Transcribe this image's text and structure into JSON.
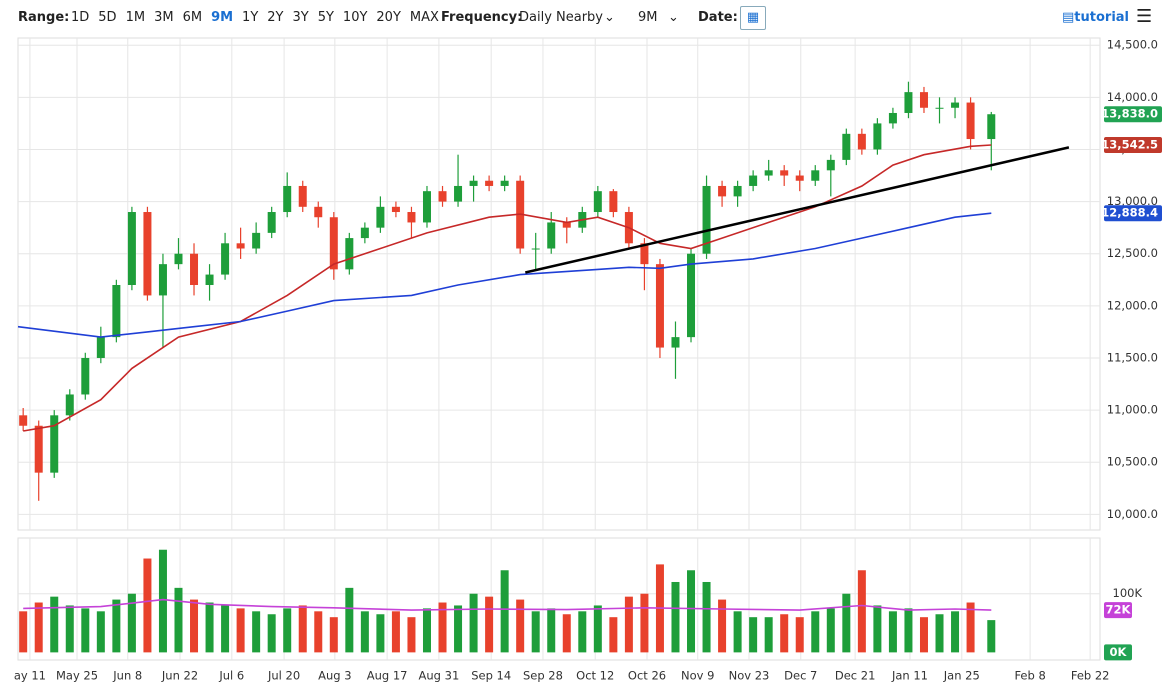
{
  "toolbar": {
    "range_label": "Range:",
    "ranges": [
      "1D",
      "5D",
      "1M",
      "3M",
      "6M",
      "9M",
      "1Y",
      "2Y",
      "3Y",
      "5Y",
      "10Y",
      "20Y",
      "MAX"
    ],
    "active_range": "9M",
    "frequency_label": "Frequency:",
    "frequency": "Daily Nearby",
    "period": "9M",
    "date_label": "Date:",
    "tutorial": "tutorial"
  },
  "chart_data": [
    {
      "type": "candlestick",
      "up_color": "#1e9e3a",
      "down_color": "#e8412c",
      "xlim": [
        -1,
        208
      ],
      "ylim": [
        9850,
        14550
      ],
      "grid": true,
      "yticks": [
        {
          "value": 10000,
          "label": "10,000.0"
        },
        {
          "value": 10500,
          "label": "10,500.0"
        },
        {
          "value": 11000,
          "label": "11,000.0"
        },
        {
          "value": 11500,
          "label": "11,500.0"
        },
        {
          "value": 12000,
          "label": "12,000.0"
        },
        {
          "value": 12500,
          "label": "12,500.0"
        },
        {
          "value": 13000,
          "label": "13,000.0"
        },
        {
          "value": 13500,
          "label": "13,500.0"
        },
        {
          "value": 14000,
          "label": "14,000.0"
        },
        {
          "value": 14500,
          "label": "14,500.0"
        }
      ],
      "x": [
        0,
        3,
        6,
        9,
        12,
        15,
        18,
        21,
        24,
        27,
        30,
        33,
        36,
        39,
        42,
        45,
        48,
        51,
        54,
        57,
        60,
        63,
        66,
        69,
        72,
        75,
        78,
        81,
        84,
        87,
        90,
        93,
        96,
        99,
        102,
        105,
        108,
        111,
        114,
        117,
        120,
        123,
        126,
        129,
        132,
        135,
        138,
        141,
        144,
        147,
        150,
        153,
        156,
        159,
        162,
        165,
        168,
        171,
        174,
        177,
        180,
        183,
        187
      ],
      "open": [
        10950,
        10850,
        10400,
        10950,
        11150,
        11500,
        11700,
        12200,
        12900,
        12100,
        12400,
        12500,
        12200,
        12300,
        12600,
        12550,
        12700,
        12900,
        13150,
        12950,
        12850,
        12350,
        12650,
        12750,
        12950,
        12900,
        12800,
        13100,
        13000,
        13150,
        13200,
        13150,
        13200,
        12550,
        12550,
        12800,
        12750,
        12900,
        13100,
        12900,
        12600,
        12400,
        11600,
        11700,
        12500,
        13150,
        13050,
        13150,
        13250,
        13300,
        13250,
        13200,
        13300,
        13400,
        13650,
        13500,
        13750,
        13850,
        14050,
        13900,
        13900,
        13950,
        13600
      ],
      "high": [
        11020,
        10900,
        11000,
        11200,
        11550,
        11800,
        12250,
        12950,
        12950,
        12500,
        12650,
        12600,
        12400,
        12700,
        12750,
        12800,
        12950,
        13280,
        13200,
        13000,
        12900,
        12700,
        12800,
        13050,
        13000,
        12950,
        13150,
        13150,
        13450,
        13250,
        13250,
        13250,
        13250,
        12700,
        12900,
        12850,
        12950,
        13150,
        13120,
        12950,
        12650,
        12450,
        11850,
        12550,
        13250,
        13200,
        13200,
        13300,
        13400,
        13350,
        13300,
        13350,
        13450,
        13700,
        13700,
        13800,
        13900,
        14150,
        14100,
        14000,
        14000,
        14000,
        13860
      ],
      "low": [
        10800,
        10130,
        10350,
        10900,
        11100,
        11450,
        11650,
        12150,
        12050,
        11600,
        12350,
        12100,
        12050,
        12250,
        12450,
        12500,
        12650,
        12850,
        12900,
        12750,
        12250,
        12300,
        12600,
        12700,
        12850,
        12650,
        12750,
        12950,
        12950,
        13000,
        13100,
        13100,
        12500,
        12350,
        12500,
        12600,
        12700,
        12850,
        12850,
        12550,
        12150,
        11500,
        11300,
        11650,
        12450,
        12950,
        12950,
        13100,
        13200,
        13150,
        13100,
        13150,
        13050,
        13350,
        13450,
        13450,
        13700,
        13800,
        13850,
        13750,
        13800,
        13500,
        13300
      ],
      "close": [
        10850,
        10400,
        10950,
        11150,
        11500,
        11700,
        12200,
        12900,
        12100,
        12400,
        12500,
        12200,
        12300,
        12600,
        12550,
        12700,
        12900,
        13150,
        12950,
        12850,
        12350,
        12650,
        12750,
        12950,
        12900,
        12800,
        13100,
        13000,
        13150,
        13200,
        13150,
        13200,
        12550,
        12550,
        12800,
        12750,
        12900,
        13100,
        12900,
        12600,
        12400,
        11600,
        11700,
        12500,
        13150,
        13050,
        13150,
        13250,
        13300,
        13250,
        13200,
        13300,
        13400,
        13650,
        13500,
        13750,
        13850,
        14050,
        13900,
        13900,
        13950,
        13600,
        13838
      ],
      "series": [
        {
          "color": "#c62828",
          "x": [
            0,
            6,
            15,
            21,
            30,
            42,
            51,
            60,
            69,
            78,
            90,
            96,
            105,
            111,
            117,
            123,
            129,
            135,
            144,
            153,
            162,
            168,
            174,
            183,
            187
          ],
          "values": [
            10800,
            10850,
            11100,
            11400,
            11700,
            11850,
            12100,
            12400,
            12550,
            12700,
            12850,
            12880,
            12800,
            12850,
            12750,
            12600,
            12550,
            12650,
            12800,
            12950,
            13150,
            13350,
            13450,
            13530,
            13542.5
          ]
        },
        {
          "color": "#1f3fd6",
          "x": [
            -1,
            15,
            24,
            33,
            42,
            51,
            60,
            75,
            84,
            96,
            111,
            117,
            123,
            129,
            141,
            153,
            162,
            171,
            180,
            187
          ],
          "values": [
            11800,
            11700,
            11750,
            11800,
            11850,
            11950,
            12050,
            12100,
            12200,
            12300,
            12350,
            12370,
            12360,
            12400,
            12450,
            12550,
            12650,
            12750,
            12850,
            12888.4
          ]
        }
      ],
      "trendline": {
        "color": "#000000",
        "x": [
          97,
          202
        ],
        "values": [
          12320,
          13520
        ]
      },
      "price_labels": [
        {
          "value": 13838,
          "label": "13,838.0",
          "color": "#21a353"
        },
        {
          "value": 13542.5,
          "label": "13,542.5",
          "color": "#c0392b"
        },
        {
          "value": 12888.4,
          "label": "12,888.4",
          "color": "#1f4fd1"
        }
      ]
    },
    {
      "type": "volume",
      "xlim": [
        -1,
        208
      ],
      "ylim": [
        -13000,
        195000
      ],
      "yticks": [
        {
          "value": 100000,
          "label": "100K"
        }
      ],
      "xticks": [
        {
          "value": 1.3,
          "label": "ay 11"
        },
        {
          "value": 10.4,
          "label": "May 25"
        },
        {
          "value": 20.2,
          "label": "Jun 8"
        },
        {
          "value": 30.3,
          "label": "Jun 22"
        },
        {
          "value": 40.3,
          "label": "Jul 6"
        },
        {
          "value": 50.4,
          "label": "Jul 20"
        },
        {
          "value": 60.2,
          "label": "Aug 3"
        },
        {
          "value": 70.3,
          "label": "Aug 17"
        },
        {
          "value": 80.3,
          "label": "Aug 31"
        },
        {
          "value": 90.4,
          "label": "Sep 14"
        },
        {
          "value": 100.4,
          "label": "Sep 28"
        },
        {
          "value": 110.5,
          "label": "Oct 12"
        },
        {
          "value": 120.5,
          "label": "Oct 26"
        },
        {
          "value": 130.3,
          "label": "Nov 9"
        },
        {
          "value": 140.2,
          "label": "Nov 23"
        },
        {
          "value": 150.2,
          "label": "Dec 7"
        },
        {
          "value": 160.7,
          "label": "Dec 21"
        },
        {
          "value": 171.3,
          "label": "Jan 11"
        },
        {
          "value": 181.3,
          "label": "Jan 25"
        },
        {
          "value": 194.5,
          "label": "Feb 8"
        },
        {
          "value": 206.1,
          "label": "Feb 22"
        }
      ],
      "x": [
        0,
        3,
        6,
        9,
        12,
        15,
        18,
        21,
        24,
        27,
        30,
        33,
        36,
        39,
        42,
        45,
        48,
        51,
        54,
        57,
        60,
        63,
        66,
        69,
        72,
        75,
        78,
        81,
        84,
        87,
        90,
        93,
        96,
        99,
        102,
        105,
        108,
        111,
        114,
        117,
        120,
        123,
        126,
        129,
        132,
        135,
        138,
        141,
        144,
        147,
        150,
        153,
        156,
        159,
        162,
        165,
        168,
        171,
        174,
        177,
        180,
        183,
        187
      ],
      "values": [
        70000,
        85000,
        95000,
        80000,
        75000,
        70000,
        90000,
        100000,
        160000,
        175000,
        110000,
        90000,
        85000,
        80000,
        75000,
        70000,
        65000,
        75000,
        80000,
        70000,
        60000,
        110000,
        70000,
        65000,
        70000,
        60000,
        75000,
        85000,
        80000,
        100000,
        95000,
        140000,
        90000,
        70000,
        75000,
        65000,
        70000,
        80000,
        60000,
        95000,
        100000,
        150000,
        120000,
        140000,
        120000,
        90000,
        70000,
        60000,
        60000,
        65000,
        60000,
        70000,
        75000,
        100000,
        140000,
        80000,
        70000,
        75000,
        60000,
        65000,
        70000,
        85000,
        55000
      ],
      "series": [
        {
          "color": "#c542d8",
          "x": [
            0,
            15,
            27,
            36,
            48,
            60,
            75,
            90,
            105,
            120,
            135,
            150,
            162,
            171,
            180,
            187
          ],
          "values": [
            75000,
            78000,
            90000,
            82000,
            78000,
            76000,
            72000,
            74000,
            73000,
            76000,
            74000,
            72000,
            80000,
            72000,
            74000,
            72000
          ]
        }
      ],
      "volume_labels": [
        {
          "value": 72000,
          "label": "72K",
          "color": "#c542d8"
        },
        {
          "value": 0,
          "label": "0K",
          "color": "#21a353"
        }
      ]
    }
  ]
}
